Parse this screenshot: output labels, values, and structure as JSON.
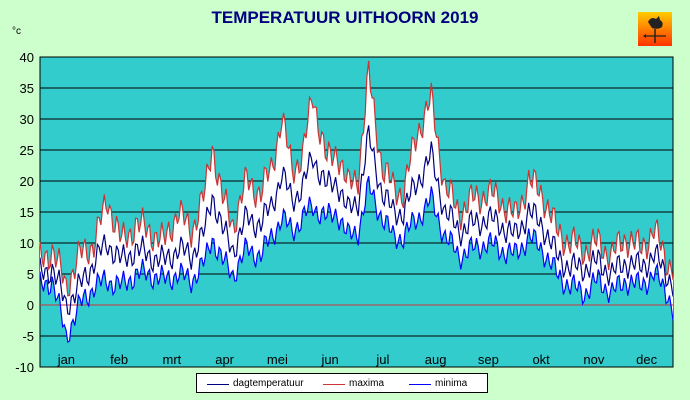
{
  "chart_data": {
    "type": "line",
    "title": "TEMPERATUUR UITHOORN 2019",
    "ylabel": "°c",
    "xlabel": "",
    "ylim": [
      -10,
      40
    ],
    "yticks": [
      -10,
      -5,
      0,
      5,
      10,
      15,
      20,
      25,
      30,
      35,
      40
    ],
    "xticks": [
      "jan",
      "feb",
      "mrt",
      "apr",
      "mei",
      "jun",
      "jul",
      "aug",
      "sep",
      "okt",
      "nov",
      "dec"
    ],
    "grid": true,
    "legend_position": "bottom",
    "colors": {
      "page_background": "#ccffcc",
      "plot_background": "#33cccc",
      "band_fill": "#ffffff",
      "dagtemperatuur": "#000080",
      "maxima": "#cc3333",
      "minima": "#0000ff",
      "title": "#000080"
    },
    "series_keypoints": {
      "x": [
        1,
        8,
        16,
        24,
        32,
        40,
        48,
        56,
        64,
        72,
        80,
        88,
        96,
        100,
        106,
        112,
        120,
        128,
        134,
        140,
        146,
        152,
        158,
        166,
        172,
        178,
        184,
        190,
        198,
        204,
        210,
        218,
        226,
        234,
        242,
        250,
        258,
        266,
        274,
        282,
        290,
        298,
        306,
        314,
        322,
        330,
        338,
        346,
        354,
        362,
        365
      ],
      "maxima": [
        7,
        9,
        3,
        8,
        10,
        17,
        10,
        13,
        12,
        10,
        15,
        12,
        18,
        26,
        17,
        13,
        20,
        18,
        22,
        30,
        22,
        24,
        34,
        23,
        25,
        19,
        21,
        37,
        22,
        19,
        18,
        28,
        33,
        19,
        15,
        17,
        18,
        17,
        14,
        20,
        18,
        12,
        10,
        9,
        10,
        8,
        11,
        9,
        12,
        7,
        6
      ],
      "dagtemperatuur": [
        5,
        6,
        0,
        3,
        7,
        10,
        7,
        9,
        8,
        7,
        9,
        8,
        12,
        18,
        12,
        9,
        14,
        13,
        16,
        21,
        17,
        19,
        24,
        19,
        20,
        15,
        17,
        27,
        18,
        15,
        15,
        20,
        24,
        15,
        12,
        13,
        14,
        13,
        11,
        15,
        13,
        8,
        6,
        6,
        7,
        5,
        7,
        6,
        8,
        5,
        3
      ],
      "minima": [
        3,
        4,
        -5,
        0,
        3,
        4,
        3,
        5,
        5,
        4,
        5,
        4,
        7,
        11,
        7,
        5,
        9,
        8,
        11,
        14,
        12,
        14,
        16,
        14,
        15,
        11,
        12,
        19,
        14,
        11,
        11,
        14,
        17,
        11,
        8,
        9,
        10,
        9,
        8,
        11,
        9,
        5,
        3,
        2,
        4,
        2,
        4,
        3,
        5,
        2,
        -1
      ]
    },
    "series": [
      {
        "name": "dagtemperatuur",
        "key": "dagtemperatuur"
      },
      {
        "name": "maxima",
        "key": "maxima"
      },
      {
        "name": "minima",
        "key": "minima"
      }
    ]
  }
}
